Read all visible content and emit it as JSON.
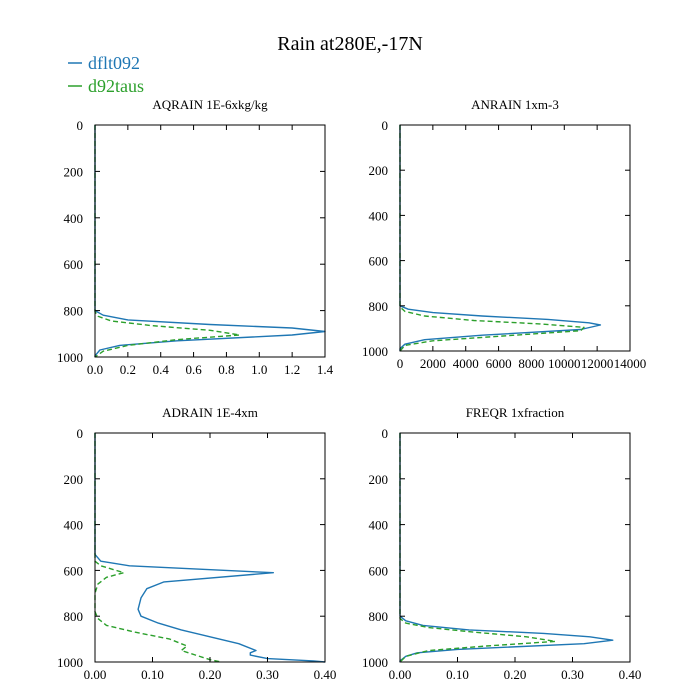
{
  "figure": {
    "title": "Rain at280E,-17N"
  },
  "colors": {
    "dflt092": "#1f77b4",
    "d92taus": "#2ca02c"
  },
  "legend": [
    {
      "name": "dflt092",
      "color": "#1f77b4",
      "dash": "solid"
    },
    {
      "name": "d92taus",
      "color": "#2ca02c",
      "dash": "dashed"
    }
  ],
  "chart_data": [
    {
      "type": "line",
      "title": "AQRAIN  1E-6xkg/kg",
      "xlim": [
        0,
        1.4
      ],
      "ylim": [
        1000,
        0
      ],
      "y_inverted": true,
      "xticks": [
        0,
        0.2,
        0.4,
        0.6,
        0.8,
        1.0,
        1.2,
        1.4
      ],
      "xtick_labels": [
        "0.0",
        "0.2",
        "0.4",
        "0.6",
        "0.8",
        "1.0",
        "1.2",
        "1.4"
      ],
      "yticks": [
        0,
        200,
        400,
        600,
        800,
        1000
      ],
      "ytick_labels": [
        "0",
        "200",
        "400",
        "600",
        "800",
        "1000"
      ],
      "series": [
        {
          "name": "dflt092",
          "points": [
            [
              0,
              0
            ],
            [
              0,
              800
            ],
            [
              0.05,
              820
            ],
            [
              0.2,
              840
            ],
            [
              0.7,
              860
            ],
            [
              1.2,
              875
            ],
            [
              1.4,
              890
            ],
            [
              1.2,
              905
            ],
            [
              0.5,
              930
            ],
            [
              0.15,
              950
            ],
            [
              0.03,
              970
            ],
            [
              0,
              995
            ],
            [
              0,
              1000
            ]
          ]
        },
        {
          "name": "d92taus",
          "points": [
            [
              0,
              0
            ],
            [
              0,
              805
            ],
            [
              0.02,
              825
            ],
            [
              0.1,
              845
            ],
            [
              0.35,
              865
            ],
            [
              0.7,
              885
            ],
            [
              0.88,
              905
            ],
            [
              0.5,
              925
            ],
            [
              0.2,
              950
            ],
            [
              0.05,
              975
            ],
            [
              0,
              1000
            ]
          ]
        }
      ]
    },
    {
      "type": "line",
      "title": "ANRAIN  1xm-3",
      "xlim": [
        0,
        14000
      ],
      "ylim": [
        1000,
        0
      ],
      "y_inverted": true,
      "xticks": [
        0,
        2000,
        4000,
        6000,
        8000,
        10000,
        12000,
        14000
      ],
      "xtick_labels": [
        "0",
        "2000",
        "4000",
        "6000",
        "8000",
        "10000",
        "12000",
        "14000"
      ],
      "yticks": [
        0,
        200,
        400,
        600,
        800,
        1000
      ],
      "ytick_labels": [
        "0",
        "200",
        "400",
        "600",
        "800",
        "1000"
      ],
      "series": [
        {
          "name": "dflt092",
          "points": [
            [
              0,
              0
            ],
            [
              0,
              800
            ],
            [
              500,
              815
            ],
            [
              2000,
              830
            ],
            [
              5000,
              845
            ],
            [
              9000,
              860
            ],
            [
              11500,
              875
            ],
            [
              12200,
              885
            ],
            [
              11000,
              905
            ],
            [
              5000,
              930
            ],
            [
              1500,
              950
            ],
            [
              300,
              970
            ],
            [
              0,
              990
            ],
            [
              0,
              1000
            ]
          ]
        },
        {
          "name": "d92taus",
          "points": [
            [
              0,
              0
            ],
            [
              0,
              805
            ],
            [
              300,
              825
            ],
            [
              1500,
              845
            ],
            [
              4500,
              865
            ],
            [
              8500,
              880
            ],
            [
              11200,
              895
            ],
            [
              11000,
              910
            ],
            [
              6000,
              935
            ],
            [
              2000,
              955
            ],
            [
              300,
              975
            ],
            [
              0,
              1000
            ]
          ]
        }
      ]
    },
    {
      "type": "line",
      "title": "ADRAIN  1E-4xm",
      "xlim": [
        0,
        0.4
      ],
      "ylim": [
        1000,
        0
      ],
      "y_inverted": true,
      "xticks": [
        0,
        0.1,
        0.2,
        0.3,
        0.4
      ],
      "xtick_labels": [
        "0.00",
        "0.10",
        "0.20",
        "0.30",
        "0.40"
      ],
      "yticks": [
        0,
        200,
        400,
        600,
        800,
        1000
      ],
      "ytick_labels": [
        "0",
        "200",
        "400",
        "600",
        "800",
        "1000"
      ],
      "series": [
        {
          "name": "dflt092",
          "points": [
            [
              0,
              0
            ],
            [
              0,
              530
            ],
            [
              0.01,
              560
            ],
            [
              0.06,
              580
            ],
            [
              0.31,
              610
            ],
            [
              0.12,
              650
            ],
            [
              0.09,
              680
            ],
            [
              0.08,
              720
            ],
            [
              0.075,
              770
            ],
            [
              0.08,
              800
            ],
            [
              0.11,
              830
            ],
            [
              0.15,
              860
            ],
            [
              0.2,
              890
            ],
            [
              0.25,
              920
            ],
            [
              0.28,
              950
            ],
            [
              0.27,
              960
            ],
            [
              0.27,
              970
            ],
            [
              0.3,
              985
            ],
            [
              0.38,
              995
            ],
            [
              0.4,
              1000
            ]
          ]
        },
        {
          "name": "d92taus",
          "points": [
            [
              0,
              0
            ],
            [
              0,
              560
            ],
            [
              0.01,
              580
            ],
            [
              0.05,
              610
            ],
            [
              0.02,
              630
            ],
            [
              0.005,
              660
            ],
            [
              0,
              700
            ],
            [
              0,
              780
            ],
            [
              0.005,
              810
            ],
            [
              0.02,
              840
            ],
            [
              0.07,
              870
            ],
            [
              0.13,
              900
            ],
            [
              0.16,
              930
            ],
            [
              0.15,
              950
            ],
            [
              0.2,
              990
            ],
            [
              0.22,
              1000
            ]
          ]
        }
      ]
    },
    {
      "type": "line",
      "title": "FREQR  1xfraction",
      "xlim": [
        0,
        0.4
      ],
      "ylim": [
        1000,
        0
      ],
      "y_inverted": true,
      "xticks": [
        0,
        0.1,
        0.2,
        0.3,
        0.4
      ],
      "xtick_labels": [
        "0.00",
        "0.10",
        "0.20",
        "0.30",
        "0.40"
      ],
      "yticks": [
        0,
        200,
        400,
        600,
        800,
        1000
      ],
      "ytick_labels": [
        "0",
        "200",
        "400",
        "600",
        "800",
        "1000"
      ],
      "series": [
        {
          "name": "dflt092",
          "points": [
            [
              0,
              0
            ],
            [
              0,
              800
            ],
            [
              0.01,
              820
            ],
            [
              0.04,
              840
            ],
            [
              0.12,
              860
            ],
            [
              0.25,
              875
            ],
            [
              0.33,
              890
            ],
            [
              0.37,
              905
            ],
            [
              0.32,
              920
            ],
            [
              0.1,
              945
            ],
            [
              0.03,
              960
            ],
            [
              0.01,
              975
            ],
            [
              0,
              995
            ],
            [
              0,
              1000
            ]
          ]
        },
        {
          "name": "d92taus",
          "points": [
            [
              0,
              0
            ],
            [
              0,
              810
            ],
            [
              0.01,
              830
            ],
            [
              0.05,
              850
            ],
            [
              0.13,
              870
            ],
            [
              0.22,
              890
            ],
            [
              0.27,
              910
            ],
            [
              0.15,
              930
            ],
            [
              0.05,
              950
            ],
            [
              0.01,
              975
            ],
            [
              0,
              1000
            ]
          ]
        }
      ]
    }
  ]
}
